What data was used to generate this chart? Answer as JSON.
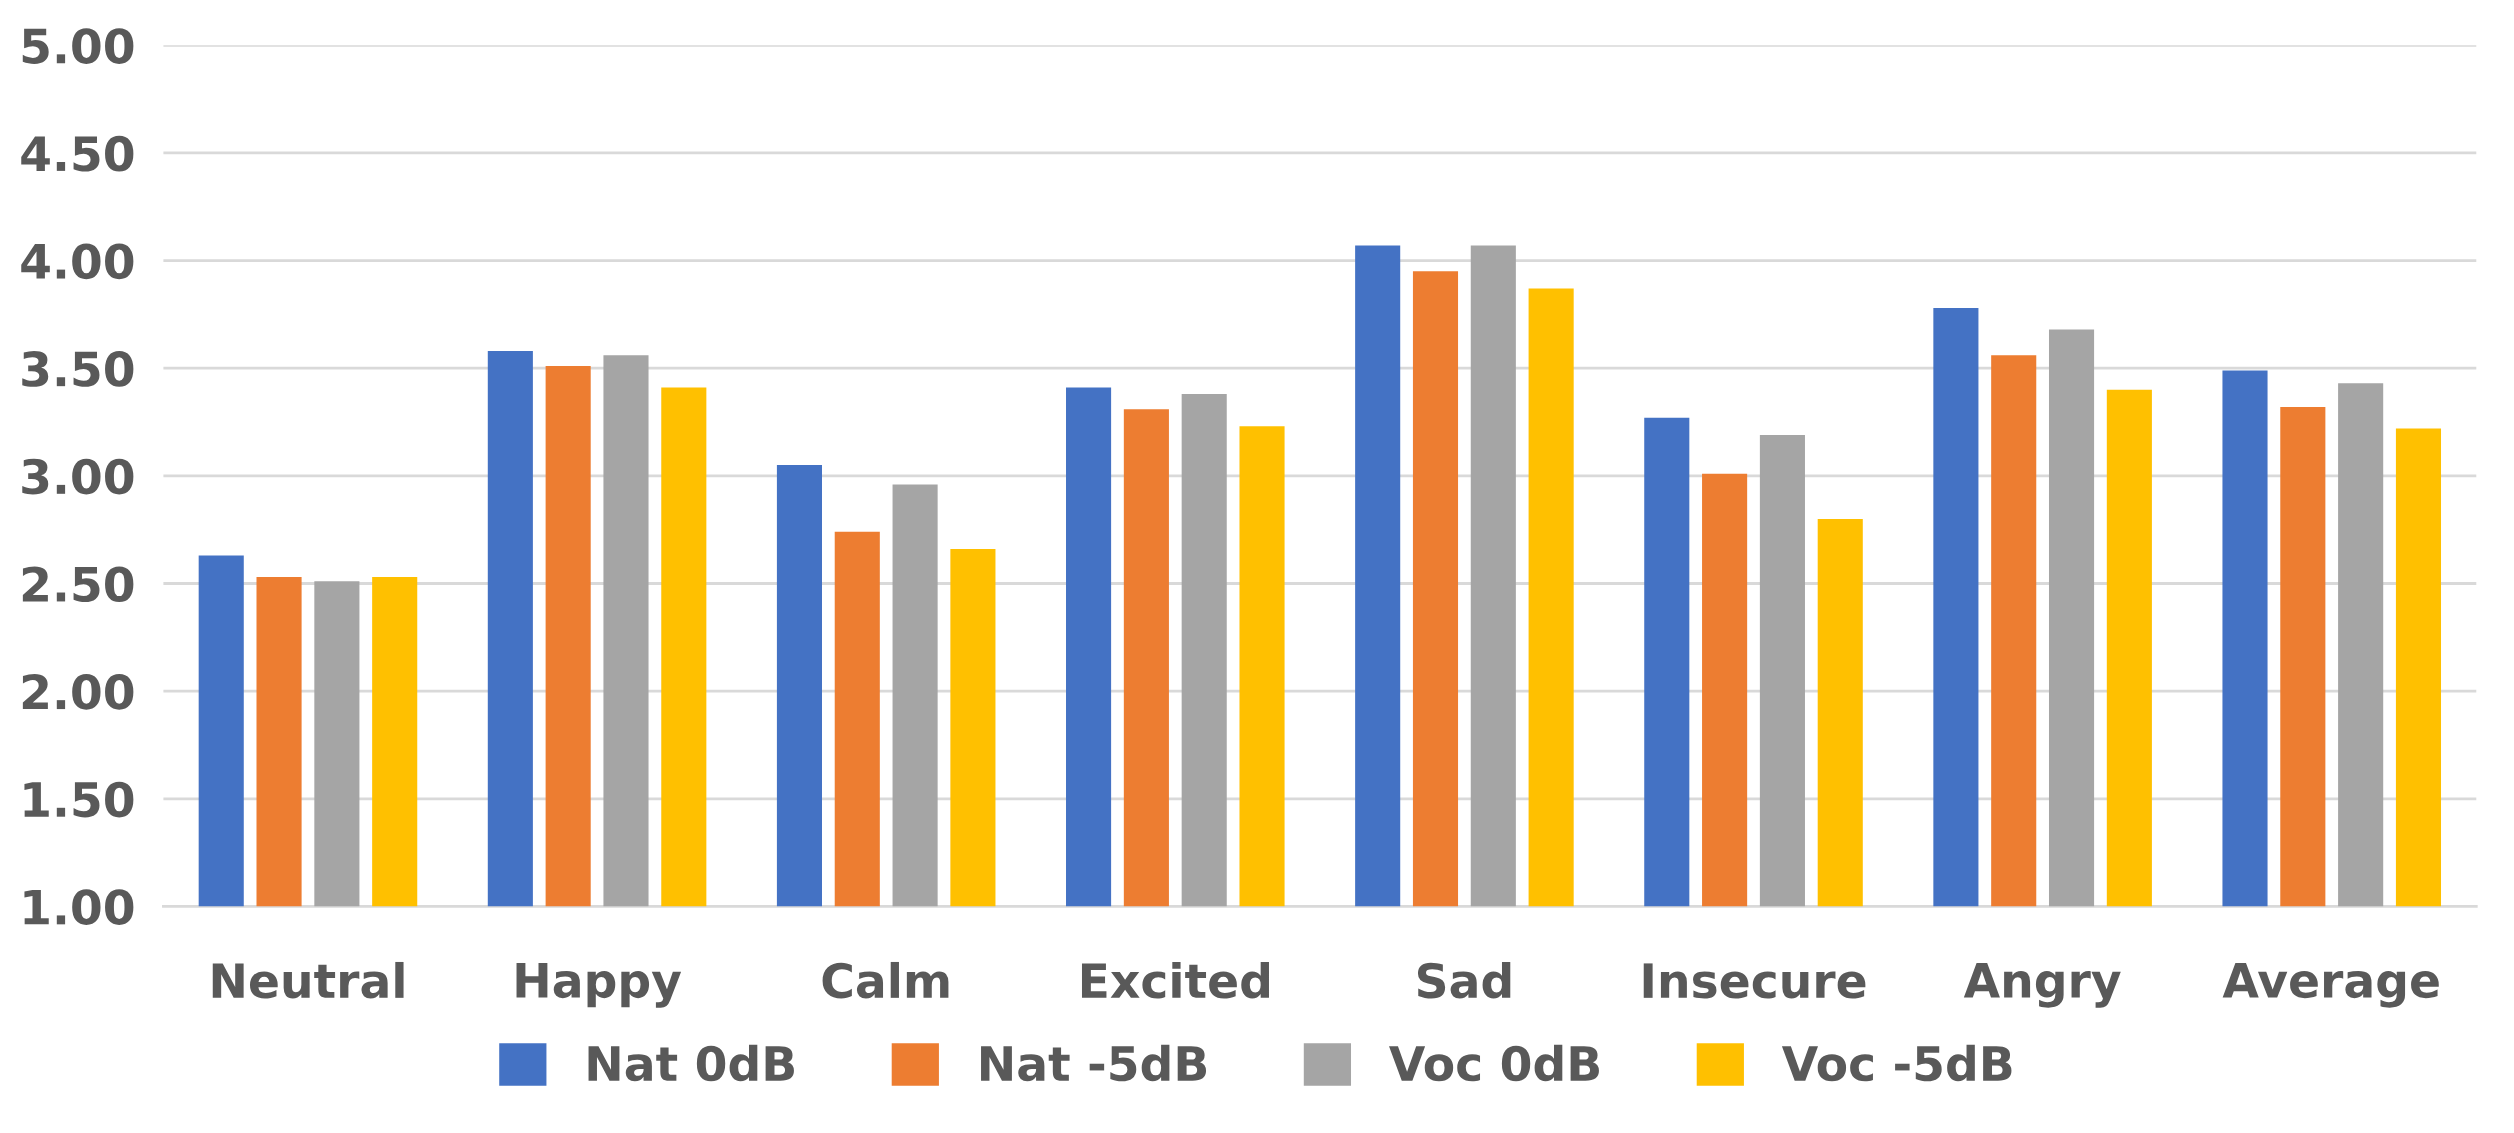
{
  "chart_data": {
    "type": "bar",
    "categories": [
      "Neutral",
      "Happy",
      "Calm",
      "Excited",
      "Sad",
      "Insecure",
      "Angry",
      "Average"
    ],
    "series": [
      {
        "name": "Nat 0dB",
        "color": "#4472c4",
        "values": [
          2.63,
          3.58,
          3.05,
          3.41,
          4.07,
          3.27,
          3.78,
          3.49
        ]
      },
      {
        "name": "Nat -5dB",
        "color": "#ed7d31",
        "values": [
          2.53,
          3.51,
          2.74,
          3.31,
          3.95,
          3.01,
          3.56,
          3.32
        ]
      },
      {
        "name": "Voc 0dB",
        "color": "#a5a5a5",
        "values": [
          2.51,
          3.56,
          2.96,
          3.38,
          4.07,
          3.19,
          3.68,
          3.43
        ]
      },
      {
        "name": "Voc -5dB",
        "color": "#ffc000",
        "values": [
          2.53,
          3.41,
          2.66,
          3.23,
          3.87,
          2.8,
          3.4,
          3.22
        ]
      }
    ],
    "ylim": [
      1,
      5
    ],
    "yticks": [
      {
        "value": 1,
        "label": "1.00"
      },
      {
        "value": 1.5,
        "label": "1.50"
      },
      {
        "value": 2,
        "label": "2.00"
      },
      {
        "value": 2.5,
        "label": "2.50"
      },
      {
        "value": 3,
        "label": "3.00"
      },
      {
        "value": 3.5,
        "label": "3.50"
      },
      {
        "value": 4,
        "label": "4.00"
      },
      {
        "value": 4.5,
        "label": "4.50"
      },
      {
        "value": 5,
        "label": "5.00"
      }
    ],
    "grid": "y",
    "legend": "bottom"
  }
}
